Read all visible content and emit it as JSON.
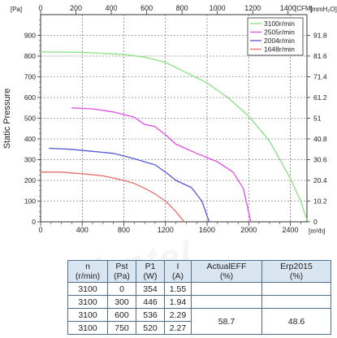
{
  "chart_data": {
    "type": "line",
    "ylabel": "Static Pressure",
    "x_bottom_unit": "[m³/h]",
    "x_top_unit": "[CFM]",
    "y_left_unit": "[Pa]",
    "y_right_unit": "[mmH₂O]",
    "x_bottom_ticks": [
      "0",
      "400",
      "800",
      "1200",
      "1600",
      "2000",
      "2400"
    ],
    "x_top_ticks": [
      "0",
      "200",
      "400",
      "600",
      "800",
      "1000",
      "1200",
      "1400"
    ],
    "y_left_ticks": [
      "0",
      "100",
      "200",
      "300",
      "400",
      "500",
      "600",
      "700",
      "800",
      "900"
    ],
    "y_right_ticks": [
      "0",
      "10.2",
      "20.4",
      "30.6",
      "40.8",
      "51",
      "61.2",
      "71.4",
      "81.6",
      "91.8"
    ],
    "xlim": [
      0,
      2560
    ],
    "ylim": [
      0,
      1000
    ],
    "grid": true,
    "legend_position": "top-right",
    "series": [
      {
        "name": "3100r/min",
        "color": "#86e27f",
        "points": [
          [
            0,
            820
          ],
          [
            400,
            818
          ],
          [
            800,
            808
          ],
          [
            1000,
            795
          ],
          [
            1200,
            770
          ],
          [
            1400,
            720
          ],
          [
            1600,
            670
          ],
          [
            1800,
            600
          ],
          [
            2000,
            510
          ],
          [
            2200,
            390
          ],
          [
            2400,
            210
          ],
          [
            2500,
            100
          ],
          [
            2560,
            10
          ]
        ]
      },
      {
        "name": "2505r/min",
        "color": "#e34de6",
        "points": [
          [
            300,
            550
          ],
          [
            500,
            545
          ],
          [
            700,
            530
          ],
          [
            900,
            505
          ],
          [
            1000,
            470
          ],
          [
            1100,
            460
          ],
          [
            1200,
            420
          ],
          [
            1300,
            375
          ],
          [
            1500,
            330
          ],
          [
            1700,
            290
          ],
          [
            1850,
            240
          ],
          [
            1950,
            160
          ],
          [
            2020,
            0
          ]
        ]
      },
      {
        "name": "2004r/min",
        "color": "#5757d8",
        "points": [
          [
            80,
            355
          ],
          [
            300,
            350
          ],
          [
            500,
            340
          ],
          [
            700,
            330
          ],
          [
            900,
            305
          ],
          [
            1000,
            290
          ],
          [
            1100,
            275
          ],
          [
            1200,
            240
          ],
          [
            1300,
            200
          ],
          [
            1450,
            165
          ],
          [
            1550,
            100
          ],
          [
            1620,
            0
          ]
        ]
      },
      {
        "name": "1648r/min",
        "color": "#e36f6f",
        "points": [
          [
            0,
            240
          ],
          [
            200,
            240
          ],
          [
            400,
            232
          ],
          [
            600,
            222
          ],
          [
            800,
            200
          ],
          [
            900,
            185
          ],
          [
            1000,
            162
          ],
          [
            1100,
            135
          ],
          [
            1200,
            100
          ],
          [
            1300,
            50
          ],
          [
            1380,
            0
          ]
        ]
      }
    ]
  },
  "table": {
    "headers": [
      {
        "line1": "n",
        "line2": "(r/min)"
      },
      {
        "line1": "Pst",
        "line2": "(Pa)"
      },
      {
        "line1": "P1",
        "line2": "(W)"
      },
      {
        "line1": "I",
        "line2": "(A)"
      },
      {
        "line1": "ActualEFF",
        "line2": "(%)"
      },
      {
        "line1": "Erp2015",
        "line2": "(%)"
      }
    ],
    "rows": [
      {
        "n": "3100",
        "pst": "0",
        "p1": "354",
        "i": "1.55"
      },
      {
        "n": "3100",
        "pst": "300",
        "p1": "446",
        "i": "1.94"
      },
      {
        "n": "3100",
        "pst": "600",
        "p1": "536",
        "i": "2.29"
      },
      {
        "n": "3100",
        "pst": "750",
        "p1": "520",
        "i": "2.27"
      }
    ],
    "actual_eff": "58.7",
    "erp2015": "48.6"
  },
  "watermark": "Ventel"
}
